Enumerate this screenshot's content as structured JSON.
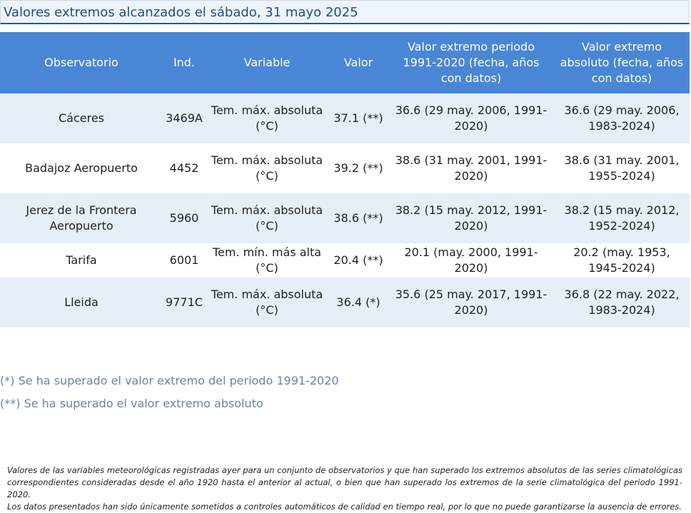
{
  "title": "Valores extremos alcanzados el sábado, 31 mayo 2025",
  "table": {
    "headers": {
      "observatorio": "Observatorio",
      "ind": "Ind.",
      "variable": "Variable",
      "valor": "Valor",
      "extremo_periodo": "Valor extremo periodo 1991-2020 (fecha, años con datos)",
      "extremo_absoluto": "Valor extremo absoluto (fecha, años con datos)"
    },
    "rows": [
      {
        "observatorio": "Cáceres",
        "ind": "3469A",
        "variable": "Tem. máx. absoluta (°C)",
        "valor": "37.1 (**)",
        "extremo_periodo": "36.6 (29 may. 2006, 1991-2020)",
        "extremo_absoluto": "36.6 (29 may. 2006, 1983-2024)"
      },
      {
        "observatorio": "Badajoz Aeropuerto",
        "ind": "4452",
        "variable": "Tem. máx. absoluta (°C)",
        "valor": "39.2 (**)",
        "extremo_periodo": "38.6 (31 may. 2001, 1991-2020)",
        "extremo_absoluto": "38.6 (31 may. 2001, 1955-2024)"
      },
      {
        "observatorio": "Jerez de la Frontera Aeropuerto",
        "ind": "5960",
        "variable": "Tem. máx. absoluta (°C)",
        "valor": "38.6 (**)",
        "extremo_periodo": "38.2 (15 may. 2012, 1991-2020)",
        "extremo_absoluto": "38.2 (15 may. 2012, 1952-2024)"
      },
      {
        "observatorio": "Tarifa",
        "ind": "6001",
        "variable": "Tem. mín. más alta (°C)",
        "valor": "20.4 (**)",
        "extremo_periodo": "20.1 (may. 2000, 1991-2020)",
        "extremo_absoluto": "20.2 (may. 1953, 1945-2024)"
      },
      {
        "observatorio": "Lleida",
        "ind": "9771C",
        "variable": "Tem. máx. absoluta (°C)",
        "valor": "36.4 (*)",
        "extremo_periodo": "35.6 (25 may. 2017, 1991-2020)",
        "extremo_absoluto": "36.8 (22 may. 2022, 1983-2024)"
      }
    ]
  },
  "notes": [
    "(*) Se ha superado el valor extremo del periodo 1991-2020",
    "(**) Se ha superado el valor extremo absoluto"
  ],
  "footer": [
    "Valores de las variables meteorológicas registradas ayer para un conjunto de observatorios y que han superado los extremos absolutos de las series climatológicas correspondientes consideradas desde el año 1920 hasta el anterior al actual, o bien que han superado los extremos de la serie climatológica del periodo 1991-2020.",
    "Los datos presentados han sido únicamente sometidos a controles automáticos de calidad en tiempo real, por lo que no puede garantizarse la ausencia de errores."
  ]
}
